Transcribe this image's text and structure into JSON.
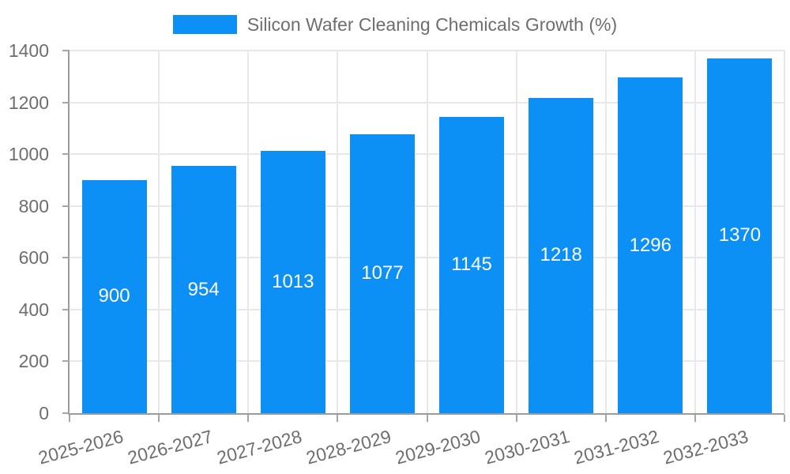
{
  "chart_data": {
    "type": "bar",
    "title": "Silicon Wafer Cleaning Chemicals Growth (%)",
    "categories": [
      "2025-2026",
      "2026-2027",
      "2027-2028",
      "2028-2029",
      "2029-2030",
      "2030-2031",
      "2031-2032",
      "2032-2033"
    ],
    "values": [
      900,
      954,
      1013,
      1077,
      1145,
      1218,
      1296,
      1370
    ],
    "xlabel": "",
    "ylabel": "",
    "ylim": [
      0,
      1400
    ],
    "ytick_step": 200,
    "ytick_labels": [
      "0",
      "200",
      "400",
      "600",
      "800",
      "1000",
      "1200",
      "1400"
    ],
    "grid": true,
    "legend_position": "top",
    "bar_value_labels_inside": true,
    "x_label_rotation_deg": 15
  },
  "colors": {
    "bar": "#0d90f5",
    "text": "#6e6e6e",
    "grid": "#e8e8e8",
    "axis": "#9b9b9b",
    "tick": "#a6a6a6",
    "value_label": "#ffffff",
    "background": "#ffffff"
  }
}
